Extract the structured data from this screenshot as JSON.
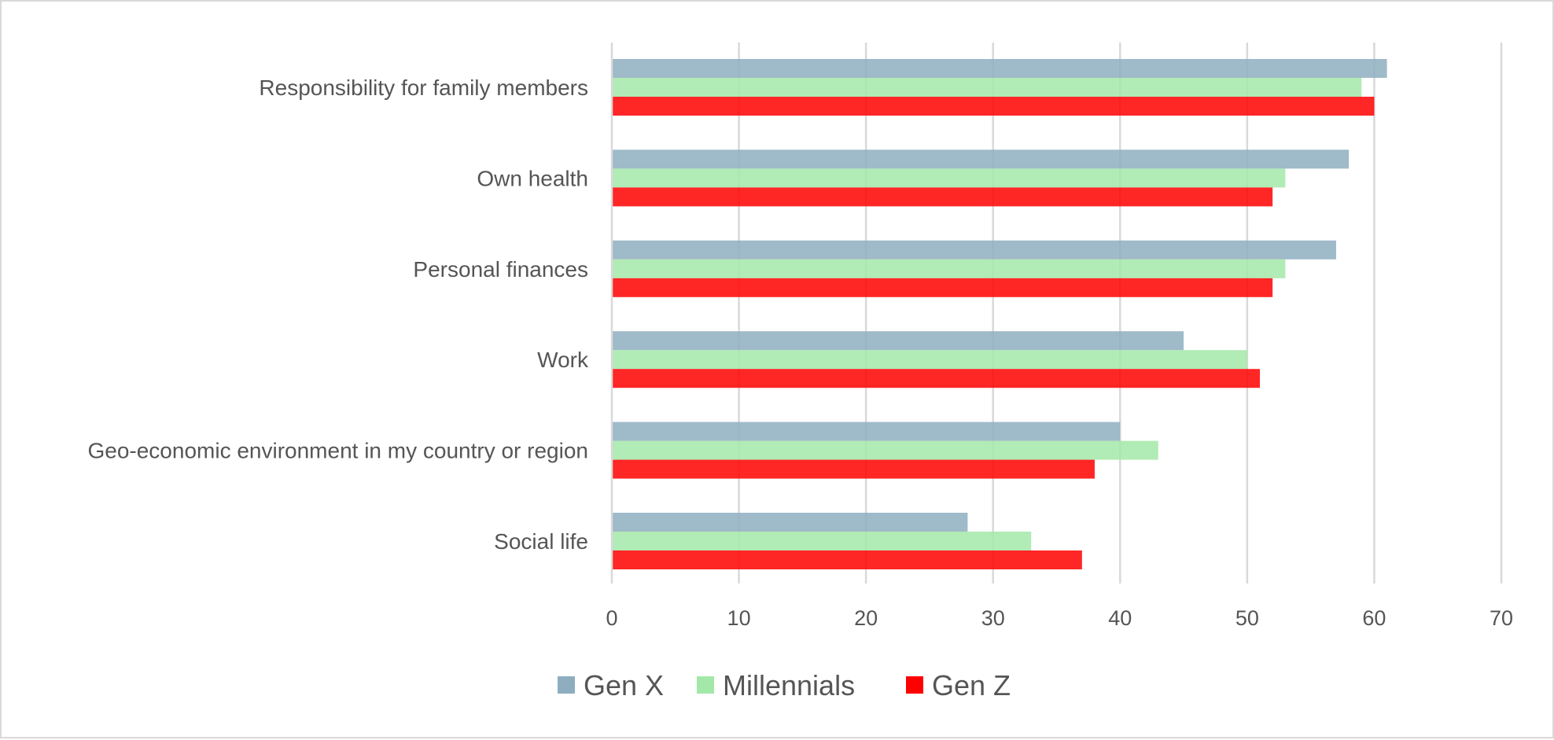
{
  "chart_data": {
    "type": "bar",
    "orientation": "horizontal",
    "title": "",
    "xlabel": "",
    "ylabel": "",
    "categories": [
      "Responsibility for family members",
      "Own health",
      "Personal finances",
      "Work",
      "Geo-economic environment in my country or region",
      "Social life"
    ],
    "series": [
      {
        "name": "Gen X",
        "color": "#8eaec0",
        "values": [
          61,
          58,
          57,
          45,
          40,
          28
        ]
      },
      {
        "name": "Millennials",
        "color": "#a3e8a8",
        "values": [
          59,
          53,
          53,
          50,
          43,
          33
        ]
      },
      {
        "name": "Gen Z",
        "color": "#ff0000",
        "values": [
          60,
          52,
          52,
          51,
          38,
          37
        ]
      }
    ],
    "xlim": [
      0,
      70
    ],
    "xticks": [
      0,
      10,
      20,
      30,
      40,
      50,
      60,
      70
    ],
    "grid": true,
    "legend": "bottom"
  }
}
